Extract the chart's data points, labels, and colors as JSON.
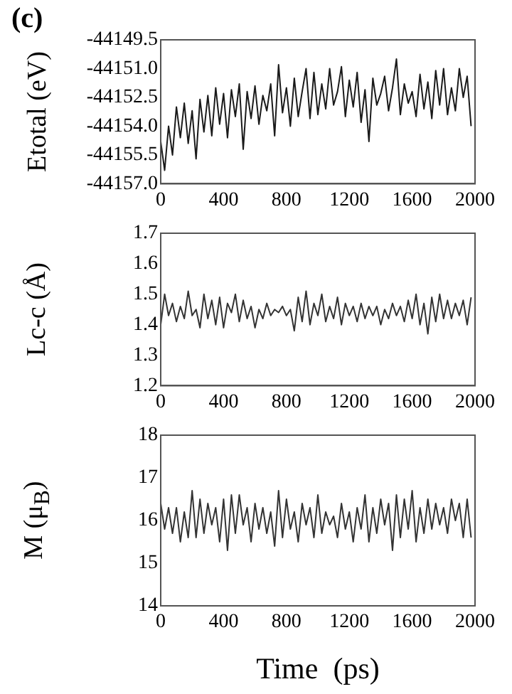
{
  "chart_data": [
    {
      "type": "line",
      "title": "(c)",
      "ylabel": "Etotal (eV)",
      "marker": "none",
      "line_style": "solid",
      "grid": false,
      "legend": false,
      "x": [
        0,
        25,
        50,
        75,
        100,
        125,
        150,
        175,
        200,
        225,
        250,
        275,
        300,
        325,
        350,
        375,
        400,
        425,
        450,
        475,
        500,
        525,
        550,
        575,
        600,
        625,
        650,
        675,
        700,
        725,
        750,
        775,
        800,
        825,
        850,
        875,
        900,
        925,
        950,
        975,
        1000,
        1025,
        1050,
        1075,
        1100,
        1125,
        1150,
        1175,
        1200,
        1225,
        1250,
        1275,
        1300,
        1325,
        1350,
        1375,
        1400,
        1425,
        1450,
        1475,
        1500,
        1525,
        1550,
        1575,
        1600,
        1625,
        1650,
        1675,
        1700,
        1725,
        1750,
        1775,
        1800,
        1825,
        1850,
        1875,
        1900,
        1925,
        1950,
        1975
      ],
      "series": [
        {
          "color": "#1a1a1a",
          "values": [
            -44154.8,
            -44156.3,
            -44154.0,
            -44155.5,
            -44153.0,
            -44154.6,
            -44152.8,
            -44154.9,
            -44153.2,
            -44155.7,
            -44152.6,
            -44154.3,
            -44152.4,
            -44154.5,
            -44152.0,
            -44153.9,
            -44152.3,
            -44154.6,
            -44152.1,
            -44153.5,
            -44151.8,
            -44155.2,
            -44152.2,
            -44153.6,
            -44151.9,
            -44153.9,
            -44152.4,
            -44153.2,
            -44151.8,
            -44154.5,
            -44150.8,
            -44153.3,
            -44152.0,
            -44154.0,
            -44151.5,
            -44153.5,
            -44152.2,
            -44151.0,
            -44153.6,
            -44151.2,
            -44153.4,
            -44151.8,
            -44153.1,
            -44151.0,
            -44152.9,
            -44152.2,
            -44150.9,
            -44153.5,
            -44151.6,
            -44153.0,
            -44151.2,
            -44153.8,
            -44152.1,
            -44154.8,
            -44151.5,
            -44152.9,
            -44152.3,
            -44151.4,
            -44153.2,
            -44152.0,
            -44150.5,
            -44153.4,
            -44151.8,
            -44152.8,
            -44152.2,
            -44153.5,
            -44151.3,
            -44153.1,
            -44151.7,
            -44153.6,
            -44151.1,
            -44152.9,
            -44151.0,
            -44153.4,
            -44152.0,
            -44153.2,
            -44151.0,
            -44152.5,
            -44151.4,
            -44154.0
          ]
        }
      ],
      "xlim": [
        0,
        2000
      ],
      "xticks": [
        0,
        400,
        800,
        1200,
        1600,
        2000
      ],
      "ylim": [
        -44157.0,
        -44149.5
      ],
      "yticks": [
        {
          "value": -44157.0,
          "label": "-44157.0"
        },
        -44155.5,
        {
          "value": -44154.0,
          "label": "-44154.0"
        },
        -44152.5,
        {
          "value": -44151.0,
          "label": "-44151.0"
        },
        -44149.5
      ]
    },
    {
      "type": "line",
      "ylabel": "Lc-c (Å)",
      "marker": "none",
      "line_style": "solid",
      "grid": false,
      "legend": false,
      "x": [
        0,
        25,
        50,
        75,
        100,
        125,
        150,
        175,
        200,
        225,
        250,
        275,
        300,
        325,
        350,
        375,
        400,
        425,
        450,
        475,
        500,
        525,
        550,
        575,
        600,
        625,
        650,
        675,
        700,
        725,
        750,
        775,
        800,
        825,
        850,
        875,
        900,
        925,
        950,
        975,
        1000,
        1025,
        1050,
        1075,
        1100,
        1125,
        1150,
        1175,
        1200,
        1225,
        1250,
        1275,
        1300,
        1325,
        1350,
        1375,
        1400,
        1425,
        1450,
        1475,
        1500,
        1525,
        1550,
        1575,
        1600,
        1625,
        1650,
        1675,
        1700,
        1725,
        1750,
        1775,
        1800,
        1825,
        1850,
        1875,
        1900,
        1925,
        1950,
        1975
      ],
      "series": [
        {
          "color": "#333333",
          "values": [
            1.4,
            1.5,
            1.43,
            1.47,
            1.41,
            1.46,
            1.42,
            1.51,
            1.43,
            1.45,
            1.39,
            1.5,
            1.42,
            1.48,
            1.4,
            1.49,
            1.39,
            1.47,
            1.44,
            1.5,
            1.41,
            1.48,
            1.42,
            1.46,
            1.39,
            1.45,
            1.42,
            1.47,
            1.43,
            1.45,
            1.44,
            1.46,
            1.43,
            1.45,
            1.38,
            1.49,
            1.41,
            1.51,
            1.4,
            1.47,
            1.43,
            1.5,
            1.41,
            1.46,
            1.42,
            1.49,
            1.4,
            1.47,
            1.43,
            1.46,
            1.41,
            1.47,
            1.42,
            1.46,
            1.43,
            1.46,
            1.4,
            1.45,
            1.42,
            1.47,
            1.43,
            1.46,
            1.41,
            1.48,
            1.42,
            1.5,
            1.4,
            1.47,
            1.37,
            1.49,
            1.41,
            1.5,
            1.42,
            1.48,
            1.42,
            1.47,
            1.43,
            1.48,
            1.4,
            1.49
          ]
        }
      ],
      "xlim": [
        0,
        2000
      ],
      "xticks": [
        0,
        400,
        800,
        1200,
        1600,
        2000
      ],
      "ylim": [
        1.2,
        1.7
      ],
      "yticks": [
        1.2,
        1.3,
        1.4,
        1.5,
        1.6,
        1.7
      ]
    },
    {
      "type": "line",
      "ylabel": "M (μ$_{B}$)",
      "xlabel": "Time  (ps)",
      "marker": "none",
      "line_style": "solid",
      "grid": false,
      "legend": false,
      "x": [
        0,
        25,
        50,
        75,
        100,
        125,
        150,
        175,
        200,
        225,
        250,
        275,
        300,
        325,
        350,
        375,
        400,
        425,
        450,
        475,
        500,
        525,
        550,
        575,
        600,
        625,
        650,
        675,
        700,
        725,
        750,
        775,
        800,
        825,
        850,
        875,
        900,
        925,
        950,
        975,
        1000,
        1025,
        1050,
        1075,
        1100,
        1125,
        1150,
        1175,
        1200,
        1225,
        1250,
        1275,
        1300,
        1325,
        1350,
        1375,
        1400,
        1425,
        1450,
        1475,
        1500,
        1525,
        1550,
        1575,
        1600,
        1625,
        1650,
        1675,
        1700,
        1725,
        1750,
        1775,
        1800,
        1825,
        1850,
        1875,
        1900,
        1925,
        1950,
        1975
      ],
      "series": [
        {
          "color": "#333333",
          "values": [
            16.4,
            15.8,
            16.3,
            15.7,
            16.3,
            15.5,
            16.2,
            15.6,
            16.7,
            15.6,
            16.5,
            15.7,
            16.4,
            15.9,
            16.3,
            15.5,
            16.5,
            15.3,
            16.6,
            15.7,
            16.6,
            15.9,
            16.3,
            15.5,
            16.4,
            15.8,
            16.3,
            15.7,
            16.2,
            15.4,
            16.7,
            15.6,
            16.5,
            15.8,
            16.2,
            15.5,
            16.4,
            15.9,
            16.3,
            15.6,
            16.6,
            15.7,
            16.2,
            15.9,
            16.1,
            15.6,
            16.4,
            15.8,
            16.2,
            15.5,
            16.3,
            15.8,
            16.6,
            15.5,
            16.3,
            15.7,
            16.5,
            15.9,
            16.4,
            15.3,
            16.6,
            15.6,
            16.5,
            15.8,
            16.7,
            15.5,
            16.3,
            15.7,
            16.5,
            15.8,
            16.4,
            15.9,
            16.3,
            15.7,
            16.5,
            16.0,
            16.4,
            15.6,
            16.5,
            15.6
          ]
        }
      ],
      "xlim": [
        0,
        2000
      ],
      "xticks": [
        0,
        400,
        800,
        1200,
        1600,
        2000
      ],
      "ylim": [
        14,
        18
      ],
      "yticks": [
        14,
        15,
        16,
        17,
        18
      ]
    }
  ]
}
